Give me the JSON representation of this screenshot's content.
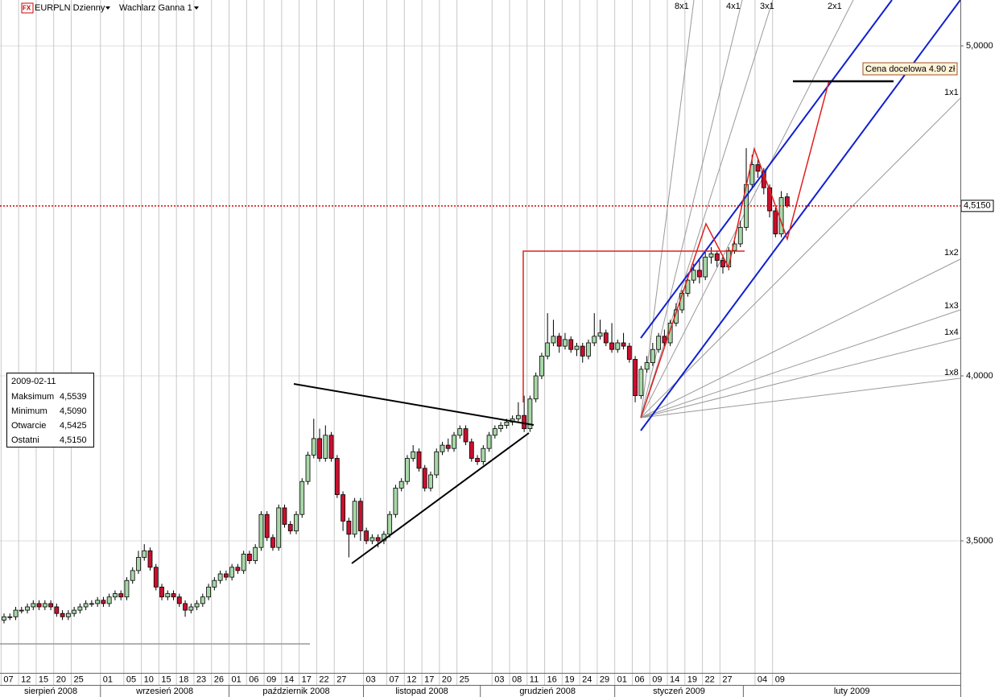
{
  "chart_data": {
    "type": "candlestick",
    "icon": "FX",
    "symbol": "EURPLN Dzienny",
    "indicator": "Wachlarz Ganna 1",
    "x_groups": [
      {
        "label": "sierpień 2008",
        "days": [
          "07",
          null,
          null,
          "12",
          null,
          null,
          "15",
          null,
          null,
          "20",
          null,
          null,
          "25",
          null,
          null,
          null,
          null
        ]
      },
      {
        "label": "wrzesień 2008",
        "days": [
          "01",
          null,
          null,
          null,
          "05",
          null,
          null,
          "10",
          null,
          null,
          "15",
          null,
          null,
          "18",
          null,
          null,
          "23",
          null,
          null,
          "26",
          null,
          null
        ]
      },
      {
        "label": "październik 2008",
        "days": [
          "01",
          null,
          null,
          "06",
          null,
          null,
          "09",
          null,
          null,
          "14",
          null,
          null,
          "17",
          null,
          null,
          "22",
          null,
          null,
          "27",
          null,
          null,
          null,
          null
        ]
      },
      {
        "label": "listopad 2008",
        "days": [
          "03",
          null,
          null,
          null,
          "07",
          null,
          null,
          "12",
          null,
          null,
          "17",
          null,
          null,
          "20",
          null,
          null,
          "25",
          null,
          null,
          null
        ]
      },
      {
        "label": "grudzień 2008",
        "days": [
          null,
          null,
          "03",
          null,
          null,
          "08",
          null,
          null,
          "11",
          null,
          null,
          "16",
          null,
          null,
          "19",
          null,
          null,
          "24",
          null,
          null,
          "29",
          null,
          null
        ]
      },
      {
        "label": "styczeń 2009",
        "days": [
          "01",
          null,
          null,
          "06",
          null,
          null,
          "09",
          null,
          null,
          "14",
          null,
          null,
          "19",
          null,
          null,
          "22",
          null,
          null,
          "27",
          null,
          null,
          null
        ]
      },
      {
        "label": "luty 2009",
        "days": [
          null,
          null,
          "04",
          null,
          null,
          "09",
          null,
          null
        ]
      }
    ],
    "ohlc": [
      [
        3.26,
        3.28,
        3.25,
        3.27
      ],
      [
        3.27,
        3.28,
        3.26,
        3.27
      ],
      [
        3.27,
        3.3,
        3.26,
        3.29
      ],
      [
        3.29,
        3.3,
        3.28,
        3.29
      ],
      [
        3.29,
        3.31,
        3.28,
        3.3
      ],
      [
        3.3,
        3.32,
        3.29,
        3.31
      ],
      [
        3.31,
        3.32,
        3.29,
        3.3
      ],
      [
        3.3,
        3.32,
        3.29,
        3.31
      ],
      [
        3.31,
        3.32,
        3.29,
        3.3
      ],
      [
        3.3,
        3.31,
        3.27,
        3.28
      ],
      [
        3.28,
        3.29,
        3.26,
        3.27
      ],
      [
        3.27,
        3.29,
        3.26,
        3.28
      ],
      [
        3.28,
        3.3,
        3.27,
        3.29
      ],
      [
        3.29,
        3.31,
        3.28,
        3.3
      ],
      [
        3.3,
        3.32,
        3.29,
        3.31
      ],
      [
        3.31,
        3.32,
        3.3,
        3.31
      ],
      [
        3.31,
        3.33,
        3.3,
        3.32
      ],
      [
        3.32,
        3.33,
        3.3,
        3.31
      ],
      [
        3.31,
        3.34,
        3.3,
        3.33
      ],
      [
        3.33,
        3.35,
        3.32,
        3.34
      ],
      [
        3.34,
        3.35,
        3.32,
        3.33
      ],
      [
        3.33,
        3.39,
        3.32,
        3.38
      ],
      [
        3.38,
        3.42,
        3.37,
        3.41
      ],
      [
        3.41,
        3.47,
        3.4,
        3.45
      ],
      [
        3.45,
        3.49,
        3.44,
        3.47
      ],
      [
        3.47,
        3.48,
        3.41,
        3.42
      ],
      [
        3.42,
        3.43,
        3.35,
        3.36
      ],
      [
        3.36,
        3.37,
        3.32,
        3.33
      ],
      [
        3.33,
        3.35,
        3.32,
        3.34
      ],
      [
        3.34,
        3.35,
        3.32,
        3.33
      ],
      [
        3.33,
        3.34,
        3.3,
        3.31
      ],
      [
        3.31,
        3.32,
        3.27,
        3.29
      ],
      [
        3.29,
        3.31,
        3.28,
        3.3
      ],
      [
        3.3,
        3.32,
        3.29,
        3.31
      ],
      [
        3.31,
        3.34,
        3.3,
        3.33
      ],
      [
        3.33,
        3.37,
        3.32,
        3.36
      ],
      [
        3.36,
        3.39,
        3.35,
        3.38
      ],
      [
        3.38,
        3.41,
        3.37,
        3.4
      ],
      [
        3.4,
        3.41,
        3.38,
        3.39
      ],
      [
        3.39,
        3.43,
        3.38,
        3.42
      ],
      [
        3.42,
        3.43,
        3.4,
        3.41
      ],
      [
        3.41,
        3.47,
        3.4,
        3.46
      ],
      [
        3.46,
        3.47,
        3.43,
        3.44
      ],
      [
        3.44,
        3.49,
        3.43,
        3.48
      ],
      [
        3.48,
        3.59,
        3.47,
        3.58
      ],
      [
        3.58,
        3.59,
        3.5,
        3.51
      ],
      [
        3.51,
        3.52,
        3.47,
        3.48
      ],
      [
        3.48,
        3.61,
        3.47,
        3.6
      ],
      [
        3.6,
        3.61,
        3.54,
        3.55
      ],
      [
        3.55,
        3.56,
        3.52,
        3.53
      ],
      [
        3.53,
        3.59,
        3.52,
        3.58
      ],
      [
        3.58,
        3.69,
        3.57,
        3.68
      ],
      [
        3.68,
        3.77,
        3.67,
        3.76
      ],
      [
        3.76,
        3.87,
        3.75,
        3.81
      ],
      [
        3.81,
        3.84,
        3.74,
        3.75
      ],
      [
        3.75,
        3.85,
        3.74,
        3.82
      ],
      [
        3.82,
        3.83,
        3.74,
        3.75
      ],
      [
        3.75,
        3.76,
        3.63,
        3.64
      ],
      [
        3.64,
        3.65,
        3.53,
        3.56
      ],
      [
        3.56,
        3.57,
        3.45,
        3.52
      ],
      [
        3.52,
        3.63,
        3.51,
        3.62
      ],
      [
        3.62,
        3.63,
        3.5,
        3.53
      ],
      [
        3.53,
        3.54,
        3.49,
        3.5
      ],
      [
        3.5,
        3.52,
        3.49,
        3.51
      ],
      [
        3.51,
        3.52,
        3.48,
        3.5
      ],
      [
        3.5,
        3.53,
        3.49,
        3.52
      ],
      [
        3.52,
        3.59,
        3.51,
        3.58
      ],
      [
        3.58,
        3.67,
        3.57,
        3.66
      ],
      [
        3.66,
        3.69,
        3.65,
        3.68
      ],
      [
        3.68,
        3.76,
        3.67,
        3.75
      ],
      [
        3.75,
        3.79,
        3.74,
        3.77
      ],
      [
        3.77,
        3.78,
        3.71,
        3.72
      ],
      [
        3.72,
        3.73,
        3.65,
        3.66
      ],
      [
        3.66,
        3.71,
        3.65,
        3.7
      ],
      [
        3.7,
        3.78,
        3.69,
        3.77
      ],
      [
        3.77,
        3.8,
        3.76,
        3.79
      ],
      [
        3.79,
        3.81,
        3.77,
        3.78
      ],
      [
        3.78,
        3.83,
        3.77,
        3.82
      ],
      [
        3.82,
        3.85,
        3.81,
        3.84
      ],
      [
        3.84,
        3.85,
        3.79,
        3.8
      ],
      [
        3.8,
        3.81,
        3.74,
        3.75
      ],
      [
        3.75,
        3.76,
        3.73,
        3.74
      ],
      [
        3.74,
        3.79,
        3.73,
        3.78
      ],
      [
        3.78,
        3.83,
        3.77,
        3.82
      ],
      [
        3.82,
        3.85,
        3.81,
        3.84
      ],
      [
        3.84,
        3.86,
        3.83,
        3.85
      ],
      [
        3.85,
        3.87,
        3.84,
        3.86
      ],
      [
        3.86,
        3.88,
        3.85,
        3.87
      ],
      [
        3.87,
        3.92,
        3.86,
        3.88
      ],
      [
        3.88,
        3.94,
        3.83,
        3.84
      ],
      [
        3.84,
        3.94,
        3.83,
        3.93
      ],
      [
        3.93,
        4.01,
        3.92,
        4.0
      ],
      [
        4.0,
        4.07,
        3.99,
        4.06
      ],
      [
        4.06,
        4.19,
        4.05,
        4.1
      ],
      [
        4.1,
        4.17,
        4.09,
        4.12
      ],
      [
        4.12,
        4.13,
        4.07,
        4.09
      ],
      [
        4.09,
        4.13,
        4.08,
        4.11
      ],
      [
        4.11,
        4.12,
        4.07,
        4.08
      ],
      [
        4.08,
        4.1,
        4.06,
        4.09
      ],
      [
        4.09,
        4.1,
        4.04,
        4.06
      ],
      [
        4.06,
        4.11,
        4.05,
        4.1
      ],
      [
        4.1,
        4.19,
        4.09,
        4.12
      ],
      [
        4.12,
        4.17,
        4.11,
        4.13
      ],
      [
        4.13,
        4.14,
        4.09,
        4.1
      ],
      [
        4.1,
        4.16,
        4.07,
        4.08
      ],
      [
        4.08,
        4.11,
        4.07,
        4.1
      ],
      [
        4.1,
        4.13,
        4.08,
        4.09
      ],
      [
        4.09,
        4.1,
        4.04,
        4.05
      ],
      [
        4.05,
        4.06,
        3.92,
        3.94
      ],
      [
        3.94,
        4.03,
        3.93,
        4.02
      ],
      [
        4.02,
        4.06,
        4.01,
        4.04
      ],
      [
        4.04,
        4.1,
        4.03,
        4.08
      ],
      [
        4.08,
        4.13,
        4.07,
        4.12
      ],
      [
        4.12,
        4.14,
        4.09,
        4.1
      ],
      [
        4.1,
        4.17,
        4.09,
        4.16
      ],
      [
        4.16,
        4.22,
        4.15,
        4.2
      ],
      [
        4.2,
        4.26,
        4.19,
        4.25
      ],
      [
        4.25,
        4.31,
        4.24,
        4.29
      ],
      [
        4.29,
        4.34,
        4.28,
        4.32
      ],
      [
        4.32,
        4.35,
        4.28,
        4.3
      ],
      [
        4.3,
        4.38,
        4.29,
        4.36
      ],
      [
        4.36,
        4.39,
        4.34,
        4.37
      ],
      [
        4.37,
        4.38,
        4.33,
        4.35
      ],
      [
        4.35,
        4.36,
        4.31,
        4.33
      ],
      [
        4.33,
        4.39,
        4.32,
        4.38
      ],
      [
        4.38,
        4.42,
        4.37,
        4.4
      ],
      [
        4.4,
        4.47,
        4.39,
        4.45
      ],
      [
        4.45,
        4.69,
        4.44,
        4.58
      ],
      [
        4.58,
        4.67,
        4.57,
        4.64
      ],
      [
        4.64,
        4.66,
        4.6,
        4.62
      ],
      [
        4.62,
        4.63,
        4.55,
        4.57
      ],
      [
        4.57,
        4.58,
        4.48,
        4.5
      ],
      [
        4.5,
        4.51,
        4.42,
        4.43
      ],
      [
        4.43,
        4.56,
        4.42,
        4.54
      ],
      [
        4.5425,
        4.5539,
        4.509,
        4.515
      ]
    ],
    "up_color": "#a8d8a8",
    "down_color": "#c8102e",
    "ylim": [
      3.1,
      5.139
    ],
    "yticks": [
      {
        "value": 3.5,
        "label": "3,5000"
      },
      {
        "value": 4,
        "label": "4,0000"
      },
      {
        "value": 5,
        "label": "5,0000"
      }
    ],
    "grid": true,
    "last_price": {
      "value": 4.515,
      "label": "4,5150"
    },
    "info_box": {
      "date": "2009-02-11",
      "rows": [
        {
          "label": "Maksimum",
          "value": "4,5539"
        },
        {
          "label": "Minimum",
          "value": "4,5090"
        },
        {
          "label": "Otwarcie",
          "value": "4,5425"
        },
        {
          "label": "Ostatni",
          "value": "4,5150"
        }
      ]
    },
    "annotations": {
      "gann": [
        "8x1",
        "4x1",
        "3x1",
        "2x1",
        "1x1",
        "1x2",
        "1x3",
        "1x4",
        "1x8"
      ],
      "target": "Cena docelowa 4.90 zł"
    }
  }
}
